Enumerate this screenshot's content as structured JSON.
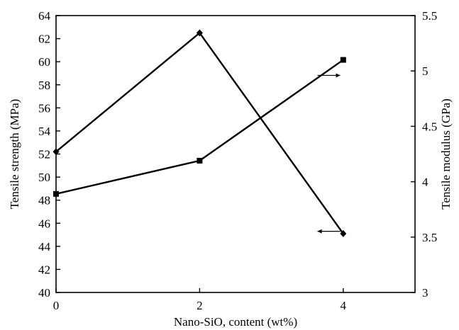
{
  "chart_data": {
    "type": "line",
    "xlabel": "Nano-SiO, content (wt%)",
    "ylabel": "Tensile strength (MPa)",
    "y2label": "Tensile modulus (GPa)",
    "x_ticks": [
      "0",
      "2",
      "4"
    ],
    "xlim": [
      0,
      5
    ],
    "ylim": [
      40,
      64
    ],
    "y_ticks": [
      "40",
      "42",
      "44",
      "46",
      "48",
      "50",
      "52",
      "54",
      "56",
      "58",
      "60",
      "62",
      "64"
    ],
    "y2lim": [
      3,
      5.5
    ],
    "y2_ticks": [
      "3",
      "3.5",
      "4",
      "4.5",
      "5",
      "5.5"
    ],
    "series": [
      {
        "axis": "left",
        "marker": "diamond",
        "x": [
          0,
          2,
          4
        ],
        "values": [
          52.2,
          62.5,
          45.1
        ]
      },
      {
        "axis": "right",
        "marker": "square",
        "x": [
          0,
          2,
          4
        ],
        "values": [
          3.89,
          4.19,
          5.1
        ]
      }
    ],
    "annotations": [
      {
        "text": "←",
        "x": 3.8,
        "y": 45.3,
        "axis": "left",
        "meaning": "strength series uses left axis"
      },
      {
        "text": "→",
        "x": 3.8,
        "y": 4.96,
        "axis": "right",
        "meaning": "modulus series uses right axis"
      }
    ],
    "grid": false,
    "colors": {
      "line": "#000000",
      "axis": "#000000"
    }
  }
}
